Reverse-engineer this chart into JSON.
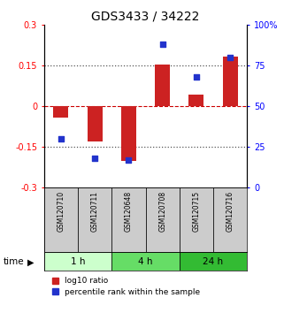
{
  "title": "GDS3433 / 34222",
  "samples": [
    "GSM120710",
    "GSM120711",
    "GSM120648",
    "GSM120708",
    "GSM120715",
    "GSM120716"
  ],
  "log10_ratio": [
    -0.04,
    -0.13,
    -0.2,
    0.155,
    0.045,
    0.185
  ],
  "percentile_rank": [
    30,
    18,
    17,
    88,
    68,
    80
  ],
  "groups": [
    {
      "label": "1 h",
      "samples": [
        0,
        1
      ],
      "color": "#ccffcc"
    },
    {
      "label": "4 h",
      "samples": [
        2,
        3
      ],
      "color": "#66dd66"
    },
    {
      "label": "24 h",
      "samples": [
        4,
        5
      ],
      "color": "#33bb33"
    }
  ],
  "bar_color": "#cc2222",
  "dot_color": "#2233cc",
  "ylim_left": [
    -0.3,
    0.3
  ],
  "ylim_right": [
    0,
    100
  ],
  "yticks_left": [
    -0.3,
    -0.15,
    0,
    0.15,
    0.3
  ],
  "yticks_right": [
    0,
    25,
    50,
    75,
    100
  ],
  "bg_color": "#ffffff"
}
